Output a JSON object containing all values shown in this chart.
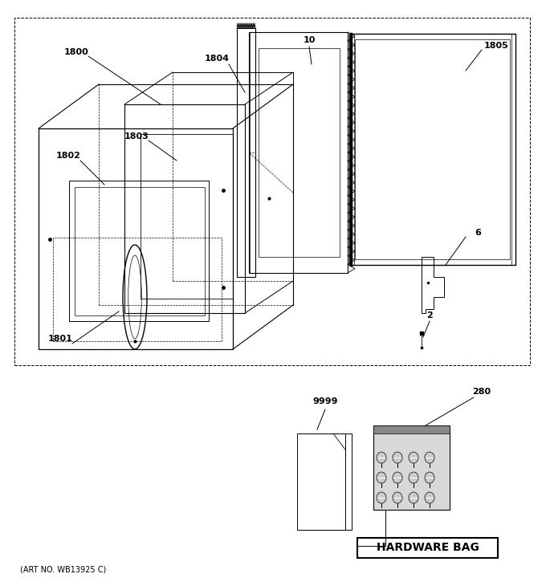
{
  "bg_color": "#ffffff",
  "art_no": "(ART NO. WB13925 C)",
  "hardware_bag_text": "HARDWARE BAG",
  "lw": 0.7
}
